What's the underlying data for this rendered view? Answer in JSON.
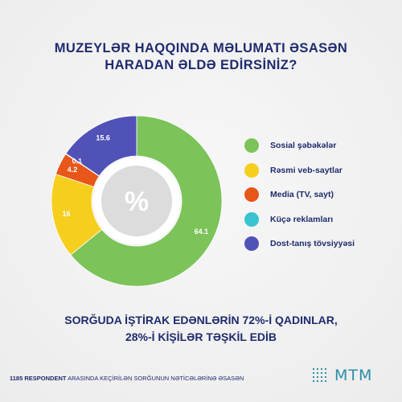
{
  "title_lines": [
    "MUZEYLƏR HAQQINDA MƏLUMATI ƏSASƏN",
    "HARADAN ƏLDƏ EDİRSİNİZ?"
  ],
  "chart_data": {
    "type": "pie",
    "categories": [
      "Sosial şəbəkələr",
      "Rəsmi veb-saytlar",
      "Media (TV, sayt)",
      "Küçə reklamları",
      "Dost-tanış tövsiyyəsi"
    ],
    "values": [
      64.1,
      16,
      4.2,
      0.1,
      15.6
    ],
    "value_labels": [
      "64.1",
      "16",
      "4.2",
      "0.1",
      "15.6"
    ],
    "colors": [
      "#7cc35a",
      "#f6ce1d",
      "#e8561a",
      "#38c3cf",
      "#5052b8"
    ],
    "center_symbol": "%",
    "legend_placement": "right"
  },
  "footer_lines": [
    "SORĞUDA İŞTİRAK EDƏNLƏRİN 72%-İ QADINLAR,",
    "28%-İ KİŞİLƏR TƏŞKİL EDİB"
  ],
  "source": {
    "bold": "1185 RESPONDENT",
    "rest": " ARASINDA KEÇİRİLƏN SORĞUNUN NƏTİCƏLƏRİNƏ ƏSASƏN"
  },
  "logo": {
    "text": "MTM",
    "icon": "grid-dots-icon",
    "color": "#2b8fa8"
  }
}
